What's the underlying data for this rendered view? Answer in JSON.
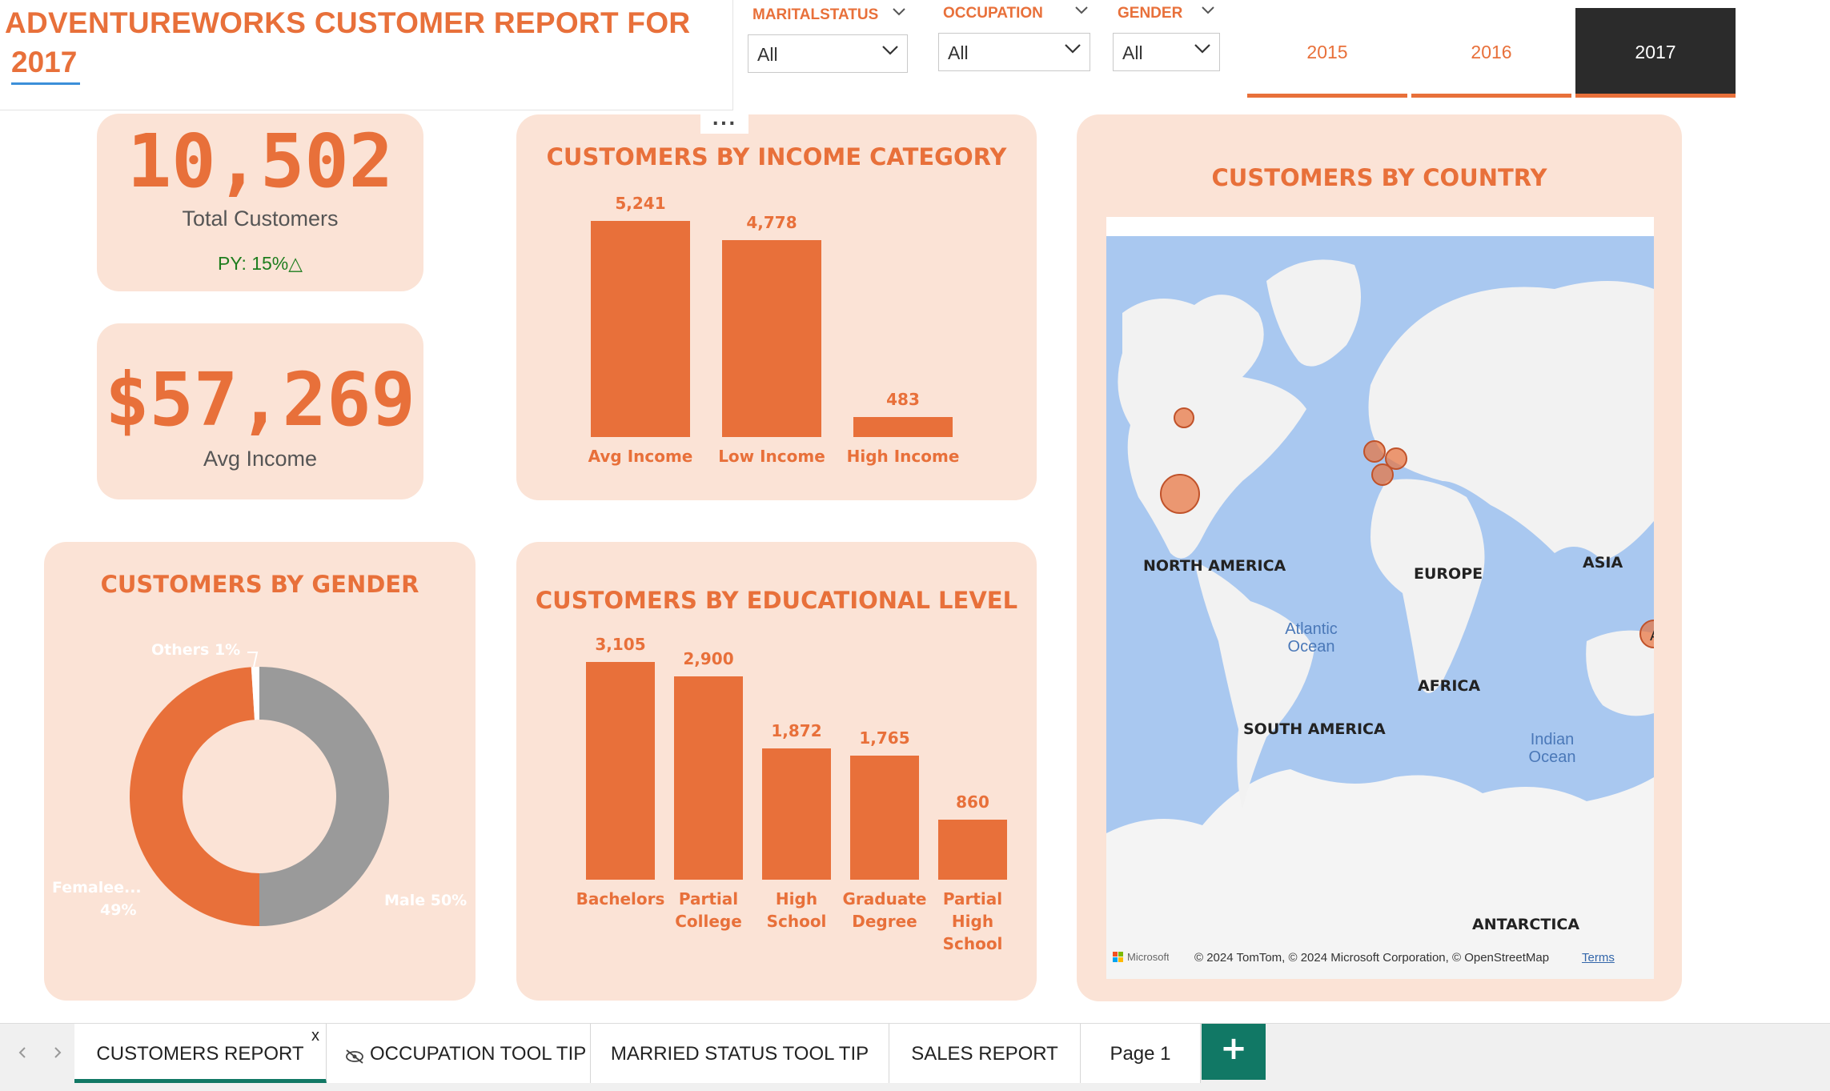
{
  "header": {
    "title_line1": "ADVENTUREWORKS CUSTOMER REPORT FOR",
    "title_line2": "2017"
  },
  "slicers": [
    {
      "label": "MARITALSTATUS",
      "value": "All"
    },
    {
      "label": "OCCUPATION",
      "value": "All"
    },
    {
      "label": "GENDER",
      "value": "All"
    }
  ],
  "years": {
    "items": [
      "2015",
      "2016",
      "2017"
    ],
    "selected": "2017"
  },
  "kpis": {
    "total_customers": {
      "value": "10,502",
      "label": "Total Customers",
      "py": "PY: 15%△"
    },
    "avg_income": {
      "value": "$57,269",
      "label": "Avg Income"
    }
  },
  "visual_menu": "...",
  "colors": {
    "accent": "#e8703a",
    "card_bg": "#fbe3d6",
    "male": "#9a9a9a",
    "positive": "#1e7d1e",
    "selected_tab": "#2b2b2b",
    "map_water": "#a9c8f0",
    "map_land": "#f2f2f2"
  },
  "chart_data": [
    {
      "type": "bar",
      "title": "CUSTOMERS BY INCOME CATEGORY",
      "categories": [
        "Avg Income",
        "Low Income",
        "High Income"
      ],
      "values": [
        5241,
        4778,
        483
      ],
      "labels": [
        "5,241",
        "4,778",
        "483"
      ]
    },
    {
      "type": "bar",
      "title": "CUSTOMERS BY EDUCATIONAL LEVEL",
      "categories": [
        "Bachelors",
        "Partial College",
        "High School",
        "Graduate Degree",
        "Partial High School"
      ],
      "category_lines": [
        [
          "Bachelors"
        ],
        [
          "Partial",
          "College"
        ],
        [
          "High",
          "School"
        ],
        [
          "Graduate",
          "Degree"
        ],
        [
          "Partial",
          "High",
          "School"
        ]
      ],
      "values": [
        3105,
        2900,
        1872,
        1765,
        860
      ],
      "labels": [
        "3,105",
        "2,900",
        "1,872",
        "1,765",
        "860"
      ]
    },
    {
      "type": "pie",
      "title": "CUSTOMERS BY GENDER",
      "donut": true,
      "slices": [
        {
          "name": "Male",
          "value": 50,
          "label": "Male 50%",
          "color": "#9a9a9a"
        },
        {
          "name": "Femalee...",
          "value": 49,
          "label_line1": "Femalee...",
          "label_line2": "49%",
          "color": "#e8703a"
        },
        {
          "name": "Others",
          "value": 1,
          "label": "Others 1%",
          "color": "#ffffff"
        }
      ]
    }
  ],
  "map": {
    "title": "CUSTOMERS BY COUNTRY",
    "regions": [
      "NORTH AMERICA",
      "EUROPE",
      "ASIA",
      "AFRICA",
      "SOUTH AMERICA",
      "ANTARCTICA"
    ],
    "oceans": [
      "Atlantic Ocean",
      "Indian Ocean"
    ],
    "bubble_country_marker": "A",
    "attribution": "© 2024 TomTom, © 2024 Microsoft Corporation, © OpenStreetMap",
    "terms": "Terms",
    "provider": "Microsoft Bing"
  },
  "page_tabs": {
    "items": [
      "CUSTOMERS REPORT",
      "OCCUPATION TOOL TIP",
      "MARRIED STATUS TOOL TIP",
      "SALES REPORT",
      "Page 1"
    ],
    "active": "CUSTOMERS REPORT",
    "close_glyph": "x",
    "add_glyph": "+"
  }
}
